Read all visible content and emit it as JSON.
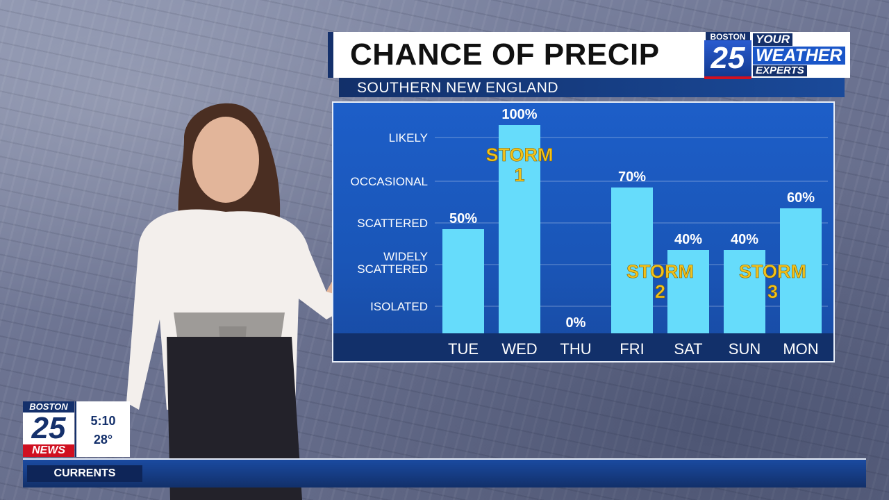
{
  "header": {
    "title": "CHANCE OF PRECIP",
    "subtitle": "SOUTHERN NEW ENGLAND"
  },
  "brand": {
    "city": "BOSTON",
    "number": "25",
    "tag_line1": "YOUR",
    "tag_line2": "WEATHER",
    "tag_line3": "EXPERTS"
  },
  "lower_third": {
    "city": "BOSTON",
    "number": "25",
    "news": "NEWS",
    "time": "5:10",
    "temp": "28°",
    "ticker_label": "CURRENTS"
  },
  "colors": {
    "bar": "#66dcfb",
    "storm_text": "#f2c21b",
    "panel": "#1d5ec8",
    "navy": "#14306b",
    "label_text": "#ffffff"
  },
  "chart_data": {
    "type": "bar",
    "categories": [
      "TUE",
      "WED",
      "THU",
      "FRI",
      "SAT",
      "SUN",
      "MON"
    ],
    "values": [
      50,
      100,
      0,
      70,
      40,
      40,
      60
    ],
    "data_labels": [
      "50%",
      "100%",
      "0%",
      "70%",
      "40%",
      "40%",
      "60%"
    ],
    "ylim": [
      0,
      100
    ],
    "y_levels": [
      {
        "label": "ISOLATED",
        "value": 13
      },
      {
        "label": "WIDELY",
        "label2": "SCATTERED",
        "value": 33
      },
      {
        "label": "SCATTERED",
        "value": 53
      },
      {
        "label": "OCCASIONAL",
        "value": 73
      },
      {
        "label": "LIKELY",
        "value": 94
      }
    ],
    "annotations": [
      {
        "line1": "STORM",
        "line2": "1",
        "category": "WED"
      },
      {
        "line1": "STORM",
        "line2": "2",
        "category": "FRI-SAT"
      },
      {
        "line1": "STORM",
        "line2": "3",
        "category": "SUN-MON"
      }
    ],
    "grid": true
  }
}
